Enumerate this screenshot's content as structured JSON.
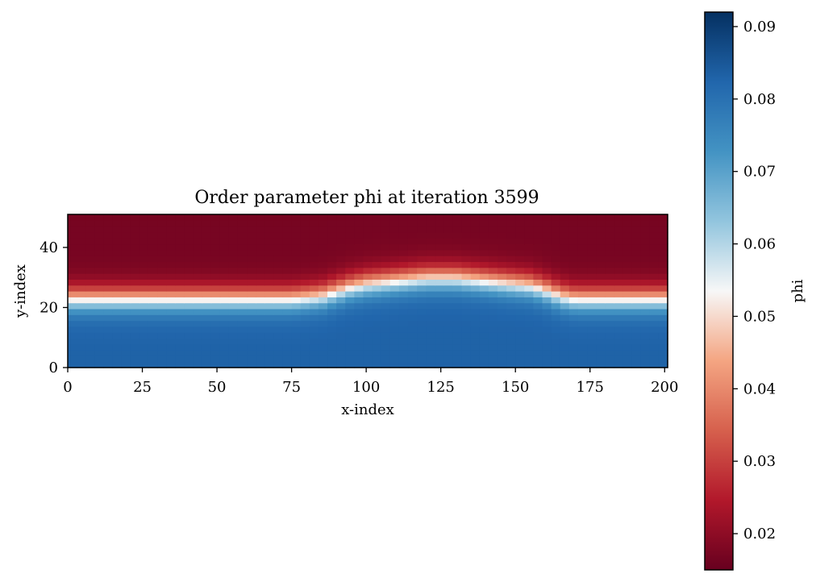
{
  "chart_data": {
    "type": "heatmap",
    "title": "Order parameter phi at iteration 3599",
    "xlabel": "x-index",
    "ylabel": "y-index",
    "xlim": [
      0,
      201
    ],
    "ylim": [
      0,
      51
    ],
    "x_ticks": [
      0,
      25,
      50,
      75,
      100,
      125,
      150,
      175,
      200
    ],
    "y_ticks": [
      0,
      20,
      40
    ],
    "colormap": "RdBu",
    "colorbar": {
      "label": "phi",
      "min": 0.015,
      "max": 0.092,
      "ticks": [
        "0.02",
        "0.03",
        "0.04",
        "0.05",
        "0.06",
        "0.07",
        "0.08",
        "0.09"
      ]
    },
    "field_description": {
      "low_phi_region": "top (red)",
      "high_phi_region": "bottom (blue)",
      "interface_y_at_edges": 23,
      "interface_bump": {
        "x_start": 85,
        "x_end": 170,
        "peak_x": 125,
        "peak_y": 30
      }
    },
    "interface_profile": {
      "x": [
        0,
        25,
        50,
        75,
        85,
        95,
        100,
        110,
        120,
        125,
        130,
        140,
        150,
        155,
        160,
        165,
        170,
        175,
        200,
        201
      ],
      "y": [
        23,
        23,
        23,
        23,
        24,
        27,
        28,
        29,
        30,
        30,
        30,
        29,
        28,
        27.5,
        26,
        24,
        23,
        23,
        23,
        23
      ]
    },
    "vmin_region": 0.017,
    "vmax_region": 0.083,
    "grid": false
  }
}
